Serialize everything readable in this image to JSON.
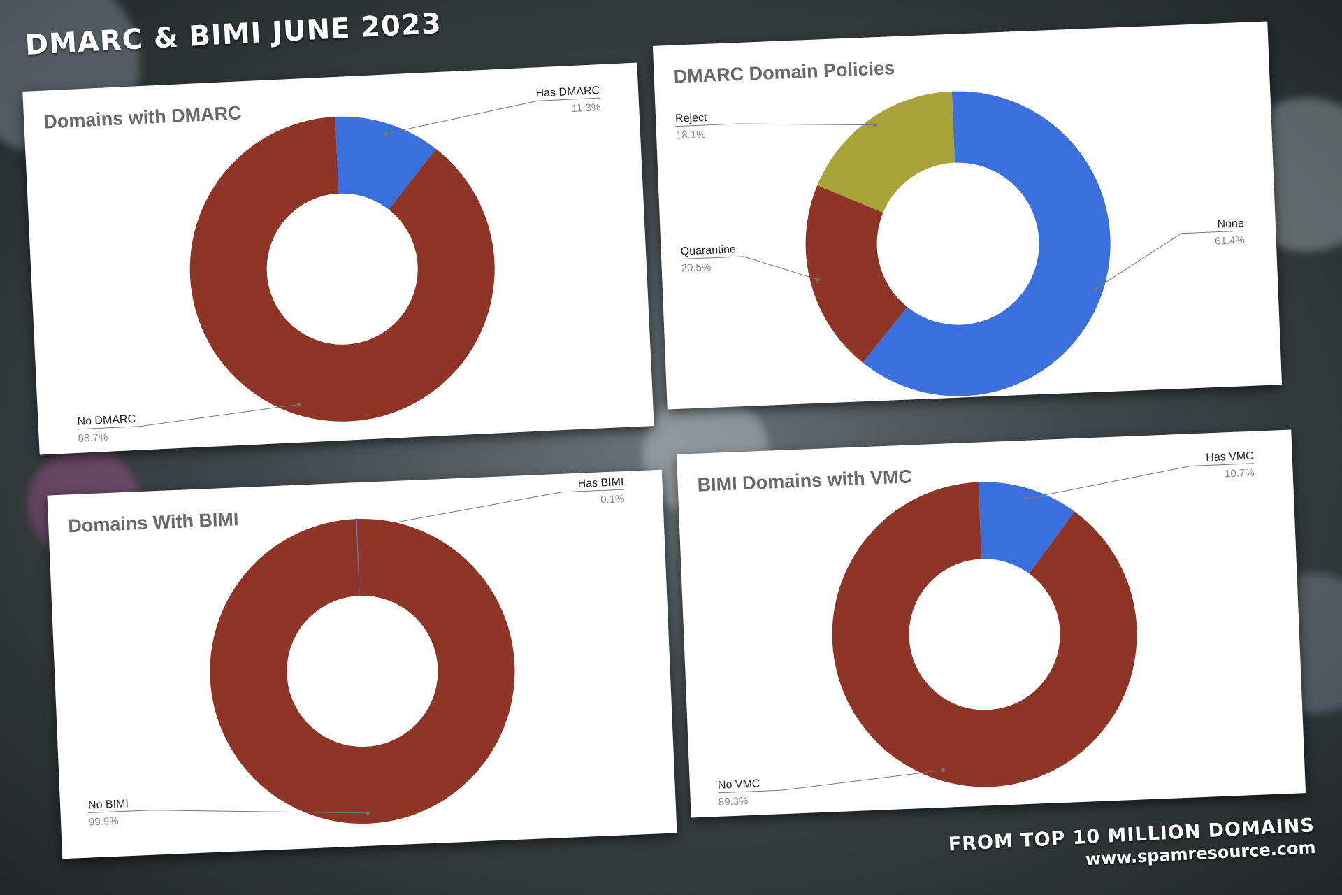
{
  "headline": "DMARC & BIMI JUNE 2023",
  "footer": {
    "line1": "FROM TOP 10 MILLION DOMAINS",
    "line2": "www.spamresource.com"
  },
  "colors": {
    "blue": "#3a6fdc",
    "red": "#8e3528",
    "yellow": "#a9a236",
    "label_text": "#222222",
    "pct_text": "#888888"
  },
  "chart_data": [
    {
      "type": "pie",
      "donut": true,
      "title": "Domains with DMARC",
      "slices": [
        {
          "label": "Has DMARC",
          "value": 11.3,
          "pct": "11.3%",
          "color": "#3a6fdc"
        },
        {
          "label": "No DMARC",
          "value": 88.7,
          "pct": "88.7%",
          "color": "#8e3528"
        }
      ]
    },
    {
      "type": "pie",
      "donut": true,
      "title": "DMARC Domain Policies",
      "slices": [
        {
          "label": "None",
          "value": 61.4,
          "pct": "61.4%",
          "color": "#3a6fdc"
        },
        {
          "label": "Quarantine",
          "value": 20.5,
          "pct": "20.5%",
          "color": "#8e3528"
        },
        {
          "label": "Reject",
          "value": 18.1,
          "pct": "18.1%",
          "color": "#a9a236"
        }
      ]
    },
    {
      "type": "pie",
      "donut": true,
      "title": "Domains With BIMI",
      "slices": [
        {
          "label": "Has BIMI",
          "value": 0.1,
          "pct": "0.1%",
          "color": "#3a6fdc"
        },
        {
          "label": "No BIMI",
          "value": 99.9,
          "pct": "99.9%",
          "color": "#8e3528"
        }
      ]
    },
    {
      "type": "pie",
      "donut": true,
      "title": "BIMI Domains with VMC",
      "slices": [
        {
          "label": "Has VMC",
          "value": 10.7,
          "pct": "10.7%",
          "color": "#3a6fdc"
        },
        {
          "label": "No VMC",
          "value": 89.3,
          "pct": "89.3%",
          "color": "#8e3528"
        }
      ]
    }
  ]
}
